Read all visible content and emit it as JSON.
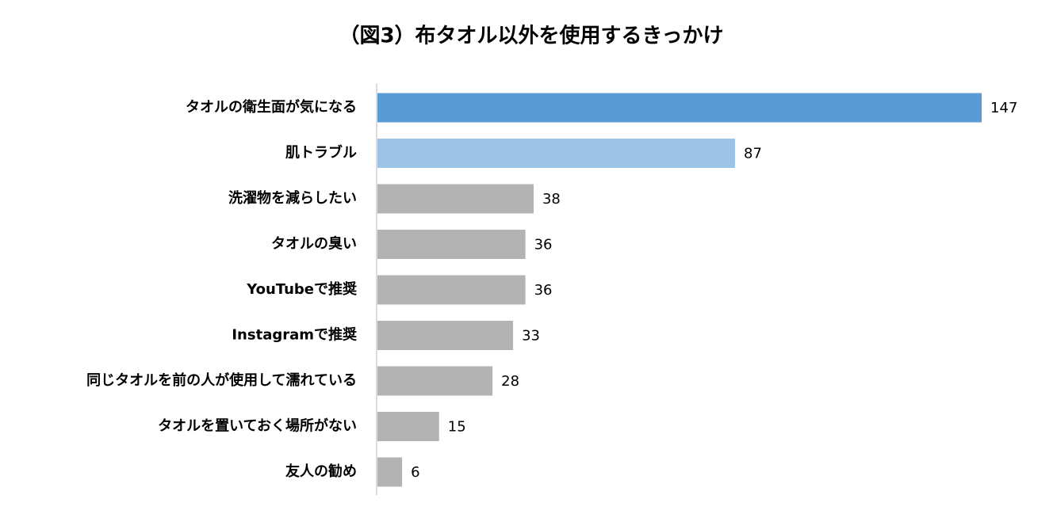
{
  "chart_data": {
    "type": "barh",
    "title": "（図3）布タオル以外を使用するきっかけ",
    "categories": [
      "タオルの衛生面が気になる",
      "肌トラブル",
      "洗濯物を減らしたい",
      "タオルの臭い",
      "YouTubeで推奨",
      "Instagramで推奨",
      "同じタオルを前の人が使用して濡れている",
      "タオルを置いておく場所がない",
      "友人の勧め"
    ],
    "values": [
      147,
      87,
      38,
      36,
      36,
      33,
      28,
      15,
      6
    ],
    "colors": [
      "#5b9bd5",
      "#9dc3e6",
      "#b3b3b3",
      "#b3b3b3",
      "#b3b3b3",
      "#b3b3b3",
      "#b3b3b3",
      "#b3b3b3",
      "#b3b3b3"
    ]
  }
}
